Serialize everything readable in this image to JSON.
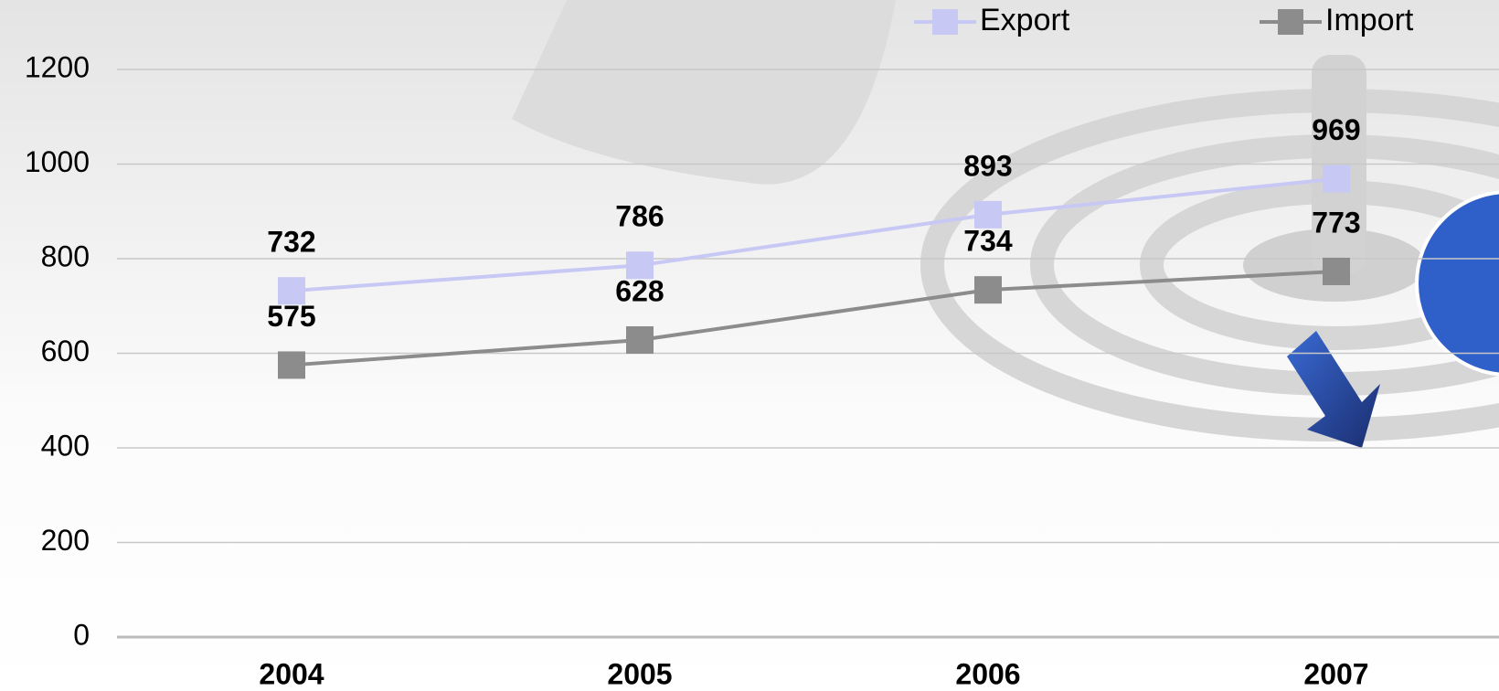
{
  "chart_data": {
    "type": "line",
    "categories": [
      "2004",
      "2005",
      "2006",
      "2007"
    ],
    "series": [
      {
        "name": "Export",
        "color": "#c8c8f5",
        "values": [
          732,
          786,
          893,
          969
        ]
      },
      {
        "name": "Import",
        "color": "#8c8c8c",
        "values": [
          575,
          628,
          734,
          773
        ]
      }
    ],
    "ylim": [
      0,
      1200
    ],
    "yticks": [
      0,
      200,
      400,
      600,
      800,
      1000,
      1200
    ],
    "grid": true,
    "legend": "top"
  }
}
